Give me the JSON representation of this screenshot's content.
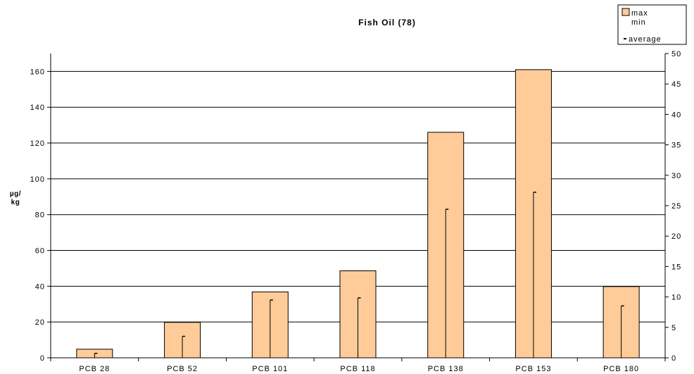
{
  "chart_data": {
    "type": "bar",
    "title": "Fish Oil (78)",
    "ylabel": [
      "µg/",
      "kg"
    ],
    "categories": [
      "PCB 28",
      "PCB 52",
      "PCB 101",
      "PCB 118",
      "PCB 138",
      "PCB 153",
      "PCB 180"
    ],
    "series": [
      {
        "name": "max",
        "values": [
          4.8,
          19.8,
          36.8,
          48.6,
          126,
          161,
          39.8
        ]
      },
      {
        "name": "min",
        "values": [
          0,
          0,
          0,
          0,
          0,
          0,
          0
        ]
      },
      {
        "name": "average",
        "values": [
          2.5,
          12,
          32.3,
          33.5,
          83,
          92.5,
          29
        ]
      }
    ],
    "ylim": [
      0,
      170
    ],
    "yticks": [
      0,
      20,
      40,
      60,
      80,
      100,
      120,
      140,
      160
    ],
    "y2lim": [
      0,
      50
    ],
    "y2ticks": [
      0,
      5,
      10,
      15,
      20,
      25,
      30,
      35,
      40,
      45,
      50
    ],
    "grid": true,
    "legend": {
      "position": "top-right",
      "entries": [
        "max",
        "min",
        "average"
      ]
    },
    "colors": {
      "bar_fill": "#ffcc99",
      "bar_stroke": "#000000"
    }
  }
}
